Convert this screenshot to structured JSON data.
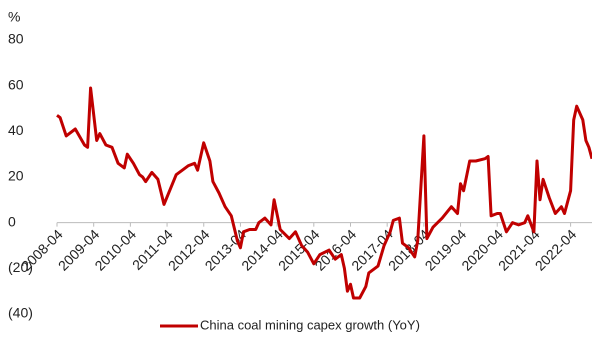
{
  "chart_data": {
    "type": "line",
    "y_label": "%",
    "x": [
      "2008-04",
      "2008-05",
      "2008-07",
      "2008-10",
      "2009-01",
      "2009-02",
      "2009-03",
      "2009-05",
      "2009-06",
      "2009-08",
      "2009-10",
      "2009-12",
      "2010-02",
      "2010-03",
      "2010-05",
      "2010-07",
      "2010-08",
      "2010-09",
      "2010-11",
      "2011-01",
      "2011-03",
      "2011-07",
      "2011-09",
      "2011-11",
      "2012-01",
      "2012-02",
      "2012-04",
      "2012-06",
      "2012-07",
      "2012-09",
      "2012-11",
      "2013-01",
      "2013-03",
      "2013-04",
      "2013-05",
      "2013-07",
      "2013-09",
      "2013-10",
      "2013-12",
      "2014-02",
      "2014-03",
      "2014-05",
      "2014-08",
      "2014-10",
      "2014-12",
      "2015-02",
      "2015-04",
      "2015-06",
      "2015-09",
      "2015-11",
      "2016-01",
      "2016-02",
      "2016-03",
      "2016-04",
      "2016-05",
      "2016-07",
      "2016-09",
      "2016-10",
      "2017-01",
      "2017-03",
      "2017-05",
      "2017-06",
      "2017-08",
      "2017-09",
      "2017-11",
      "2018-01",
      "2018-02",
      "2018-04",
      "2018-05",
      "2018-07",
      "2018-10",
      "2019-01",
      "2019-03",
      "2019-04",
      "2019-05",
      "2019-07",
      "2019-09",
      "2019-12",
      "2020-01",
      "2020-02",
      "2020-04",
      "2020-05",
      "2020-07",
      "2020-09",
      "2020-11",
      "2021-01",
      "2021-02",
      "2021-04",
      "2021-05",
      "2021-06",
      "2021-07",
      "2021-09",
      "2021-11",
      "2022-01",
      "2022-02",
      "2022-04",
      "2022-05",
      "2022-06",
      "2022-08",
      "2022-09",
      "2022-10",
      "2022-11"
    ],
    "series": [
      {
        "name": "China coal mining capex growth (YoY)",
        "color": "#c00000",
        "values": [
          47,
          46,
          38,
          41,
          34,
          33,
          59,
          36,
          39,
          34,
          33,
          26,
          24,
          30,
          26,
          21,
          20,
          18,
          22,
          19,
          8,
          21,
          23,
          25,
          26,
          23,
          35,
          27,
          18,
          13,
          7,
          3,
          -8,
          -11,
          -4,
          -3,
          -3,
          0,
          2,
          -1,
          10,
          -3,
          -7,
          -4,
          -10,
          -13,
          -18,
          -14,
          -12,
          -16,
          -14,
          -20,
          -30,
          -27,
          -33,
          -33,
          -28,
          -22,
          -19,
          -10,
          -4,
          1,
          2,
          -9,
          -11,
          -15,
          -8,
          38,
          -7,
          -2,
          2,
          7,
          4,
          17,
          14,
          27,
          27,
          28,
          29,
          3,
          4,
          4,
          -4,
          0,
          -1,
          0,
          3,
          -4,
          27,
          10,
          19,
          11,
          4,
          7,
          4,
          14,
          45,
          51,
          45,
          36,
          33,
          28
        ]
      }
    ],
    "xlim": [
      "2008-04",
      "2022-11"
    ],
    "xticks": [
      "2008-04",
      "2009-04",
      "2010-04",
      "2011-04",
      "2012-04",
      "2013-04",
      "2014-04",
      "2015-04",
      "2016-04",
      "2017-04",
      "2018-04",
      "2019-04",
      "2020-04",
      "2021-04",
      "2022-04"
    ],
    "ylim": [
      -40,
      80
    ],
    "yticks": [
      {
        "value": -40,
        "label": "(40)"
      },
      {
        "value": -20,
        "label": "(20)"
      },
      0,
      20,
      40,
      60,
      80
    ]
  }
}
